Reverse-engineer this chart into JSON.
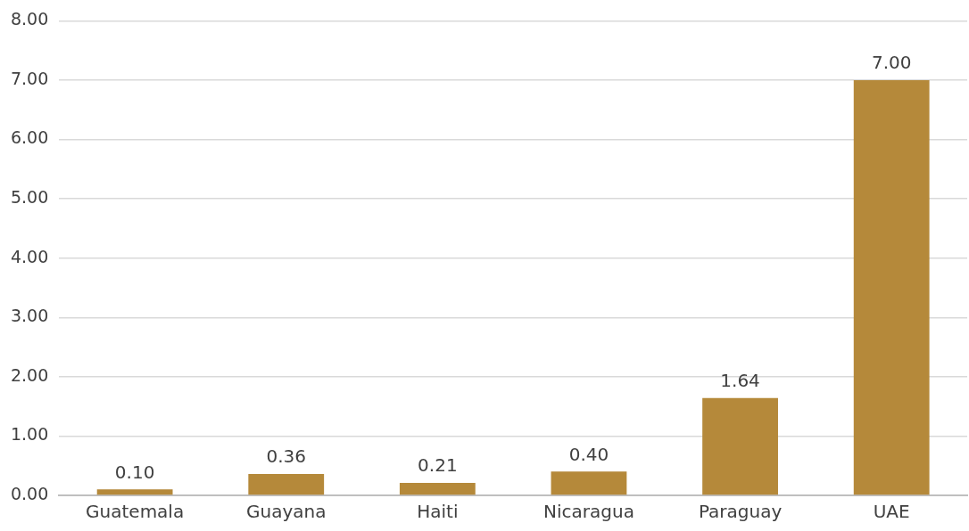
{
  "chart_data": {
    "type": "bar",
    "categories": [
      "Guatemala",
      "Guayana",
      "Haiti",
      "Nicaragua",
      "Paraguay",
      "UAE"
    ],
    "values": [
      0.1,
      0.36,
      0.21,
      0.4,
      1.64,
      7.0
    ],
    "color": "#b5893a",
    "ylim": [
      0,
      8
    ],
    "yticks": [
      {
        "value": 0,
        "label": "0.00"
      },
      {
        "value": 1,
        "label": "1.00"
      },
      {
        "value": 2,
        "label": "2.00"
      },
      {
        "value": 3,
        "label": "3.00"
      },
      {
        "value": 4,
        "label": "4.00"
      },
      {
        "value": 5,
        "label": "5.00"
      },
      {
        "value": 6,
        "label": "6.00"
      },
      {
        "value": 7,
        "label": "7.00"
      },
      {
        "value": 8,
        "label": "8.00"
      }
    ],
    "grid": "y",
    "value_labels": [
      "0.10",
      "0.36",
      "0.21",
      "0.40",
      "1.64",
      "7.00"
    ]
  }
}
